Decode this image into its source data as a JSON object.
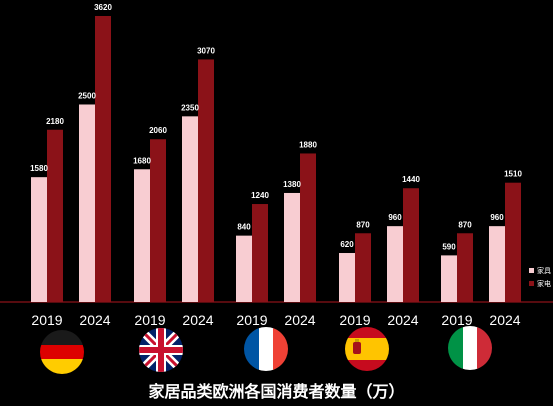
{
  "chart_data": {
    "type": "bar",
    "title": "家居品类欧洲各国消费者数量（万）",
    "categories": [
      "2019",
      "2024",
      "2019",
      "2024",
      "2019",
      "2024",
      "2019",
      "2024",
      "2019",
      "2024"
    ],
    "groups": [
      {
        "country": "Germany",
        "flag": "germany-flag",
        "years": [
          "2019",
          "2024"
        ]
      },
      {
        "country": "United Kingdom",
        "flag": "uk-flag",
        "years": [
          "2019",
          "2024"
        ]
      },
      {
        "country": "France",
        "flag": "france-flag",
        "years": [
          "2019",
          "2024"
        ]
      },
      {
        "country": "Spain",
        "flag": "spain-flag",
        "years": [
          "2019",
          "2024"
        ]
      },
      {
        "country": "Italy",
        "flag": "italy-flag",
        "years": [
          "2019",
          "2024"
        ]
      }
    ],
    "series": [
      {
        "name": "家具",
        "color": "#f8cdd2",
        "values": [
          1580,
          2500,
          1680,
          2350,
          840,
          1380,
          620,
          960,
          590,
          960
        ]
      },
      {
        "name": "家电",
        "color": "#8b1218",
        "values": [
          2180,
          3620,
          2060,
          3070,
          1240,
          1880,
          870,
          1440,
          870,
          1510
        ]
      }
    ],
    "ylim": [
      0,
      3620
    ],
    "grid": false,
    "legend": "right",
    "axis_line_color": "#8b1218"
  }
}
